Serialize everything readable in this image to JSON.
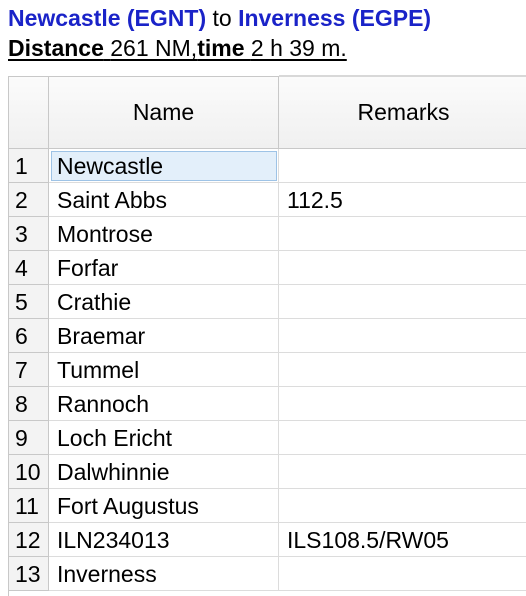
{
  "header": {
    "origin": "Newcastle (EGNT)",
    "connector": "to",
    "destination": "Inverness (EGPE)",
    "distance_label": "Distance",
    "distance_value": "261 NM,",
    "time_label": "time",
    "time_value": "2 h 39 m."
  },
  "table": {
    "columns": [
      "Name",
      "Remarks"
    ],
    "rows": [
      {
        "index": "1",
        "name": "Newcastle",
        "remarks": ""
      },
      {
        "index": "2",
        "name": "Saint Abbs",
        "remarks": "112.5"
      },
      {
        "index": "3",
        "name": "Montrose",
        "remarks": ""
      },
      {
        "index": "4",
        "name": "Forfar",
        "remarks": ""
      },
      {
        "index": "5",
        "name": "Crathie",
        "remarks": ""
      },
      {
        "index": "6",
        "name": "Braemar",
        "remarks": ""
      },
      {
        "index": "7",
        "name": "Tummel",
        "remarks": ""
      },
      {
        "index": "8",
        "name": "Rannoch",
        "remarks": ""
      },
      {
        "index": "9",
        "name": "Loch Ericht",
        "remarks": ""
      },
      {
        "index": "10",
        "name": "Dalwhinnie",
        "remarks": ""
      },
      {
        "index": "11",
        "name": "Fort Augustus",
        "remarks": ""
      },
      {
        "index": "12",
        "name": "ILN234013",
        "remarks": "ILS108.5/RW05"
      },
      {
        "index": "13",
        "name": "Inverness",
        "remarks": ""
      }
    ]
  },
  "colors": {
    "place_link": "#1a23c8",
    "selection": "#e3effa"
  }
}
